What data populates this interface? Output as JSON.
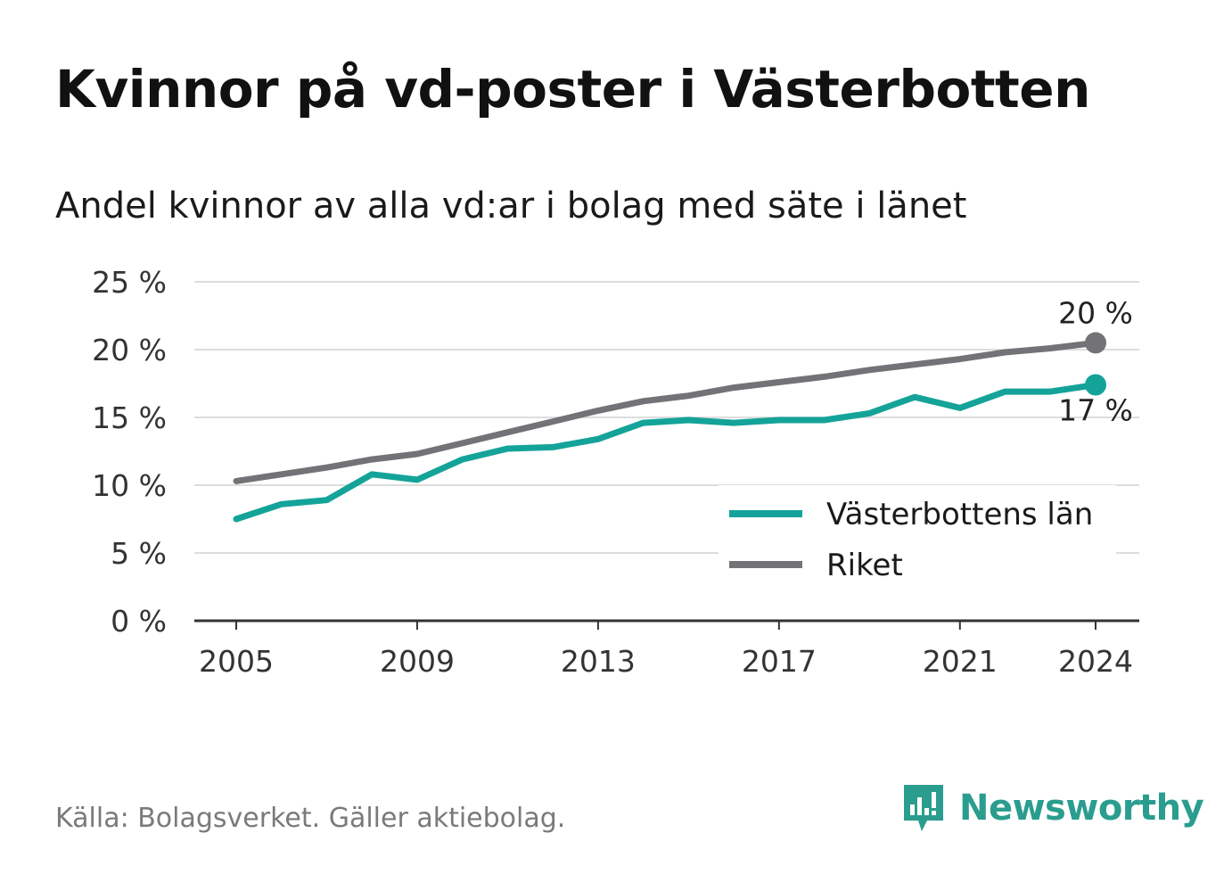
{
  "title": "Kvinnor på vd-poster i Västerbotten",
  "subtitle": "Andel kvinnor av alla vd:ar i bolag med säte i länet",
  "source": "Källa: Bolagsverket. Gäller aktiebolag.",
  "brand": {
    "name": "Newsworthy",
    "icon": "newsworthy-logo-icon",
    "color": "#2a9d8f"
  },
  "chart_data": {
    "type": "line",
    "title": "Kvinnor på vd-poster i Västerbotten",
    "subtitle": "Andel kvinnor av alla vd:ar i bolag med säte i länet",
    "xlabel": "",
    "ylabel": "",
    "x": [
      2005,
      2006,
      2007,
      2008,
      2009,
      2010,
      2011,
      2012,
      2013,
      2014,
      2015,
      2016,
      2017,
      2018,
      2019,
      2020,
      2021,
      2022,
      2023,
      2024
    ],
    "xticks": [
      2005,
      2009,
      2013,
      2017,
      2021,
      2024
    ],
    "yticks": [
      0,
      5,
      10,
      15,
      20,
      25
    ],
    "yticks_labels": [
      "0 %",
      "5 %",
      "10 %",
      "15 %",
      "20 %",
      "25 %"
    ],
    "ylim": [
      0,
      25
    ],
    "xlim": [
      2005,
      2024
    ],
    "grid": true,
    "legend_position": "bottom-right",
    "series": [
      {
        "name": "Västerbottens län",
        "color": "#14a399",
        "end_label": "17 %",
        "values": [
          7.5,
          8.6,
          8.9,
          10.8,
          10.4,
          11.9,
          12.7,
          12.8,
          13.4,
          14.6,
          14.8,
          14.6,
          14.8,
          14.8,
          15.3,
          16.5,
          15.7,
          16.9,
          16.9,
          17.4
        ]
      },
      {
        "name": "Riket",
        "color": "#737276",
        "end_label": "20 %",
        "values": [
          10.3,
          10.8,
          11.3,
          11.9,
          12.3,
          13.1,
          13.9,
          14.7,
          15.5,
          16.2,
          16.6,
          17.2,
          17.6,
          18.0,
          18.5,
          18.9,
          19.3,
          19.8,
          20.1,
          20.5
        ]
      }
    ]
  }
}
